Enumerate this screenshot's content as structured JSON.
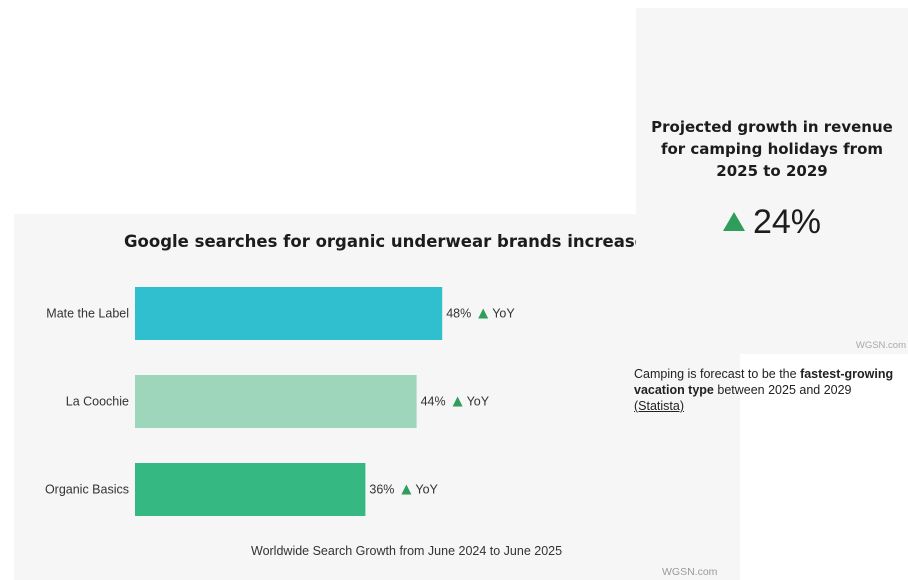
{
  "chart_data": {
    "type": "bar",
    "orientation": "horizontal",
    "title": "Google searches for organic underwear brands increase",
    "caption": "Worldwide Search Growth from June 2024 to June 2025",
    "categories": [
      "Mate the Label",
      "La Coochie",
      "Organic Basics"
    ],
    "values": [
      48,
      44,
      36
    ],
    "value_suffix": "%",
    "trend_label": "YoY",
    "trend_icon": "up-triangle-icon",
    "colors": [
      "#2fbfcf",
      "#9ed6bb",
      "#36b882"
    ],
    "grid": false,
    "legend": "none",
    "source": "WGSN.com"
  },
  "stat_card": {
    "title_lines": [
      "Projected growth in revenue",
      "for camping holidays from",
      "2025 to 2029"
    ],
    "value": "24%",
    "trend_icon": "up-triangle-icon",
    "trend_color": "#2e9e5a",
    "source": "WGSN.com"
  },
  "note": {
    "text_pre": "Camping is forecast to be the ",
    "text_bold": "fastest-growing vacation type",
    "text_post": " between 2025 and 2029",
    "link_text": "(Statista)"
  }
}
